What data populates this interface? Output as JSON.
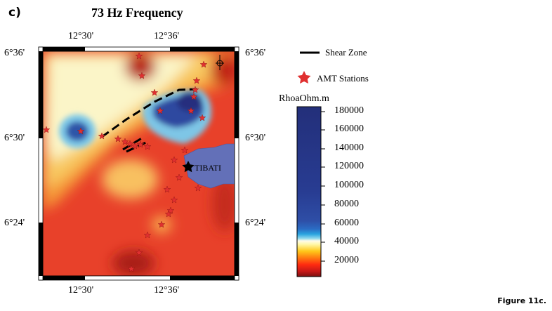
{
  "panel_label": "c)",
  "title": "73 Hz Frequency",
  "axes": {
    "top_longitudes": [
      "12°30'",
      "12°36'"
    ],
    "bottom_longitudes": [
      "12°30'",
      "12°36'"
    ],
    "left_latitudes": [
      "6°36'",
      "6°30'",
      "6°24'"
    ],
    "right_latitudes": [
      "6°36'",
      "6°30'",
      "6°24'"
    ]
  },
  "legend": {
    "shear_zone_label": "Shear Zone",
    "stations_label": "AMT Stations"
  },
  "place": {
    "name": "TIBATI"
  },
  "colorbar": {
    "title": "RhoaOhm.m",
    "labels": [
      "180000",
      "160000",
      "140000",
      "120000",
      "100000",
      "80000",
      "60000",
      "40000",
      "20000"
    ]
  },
  "caption": "Figure 11c.",
  "colors": {
    "high": "#27347f",
    "mid_blue": "#4a8fd0",
    "light": "#fbf6c4",
    "orange": "#f08a2a",
    "red": "#e03a24",
    "station_red": "#e03030",
    "lake": "#6370b8"
  }
}
